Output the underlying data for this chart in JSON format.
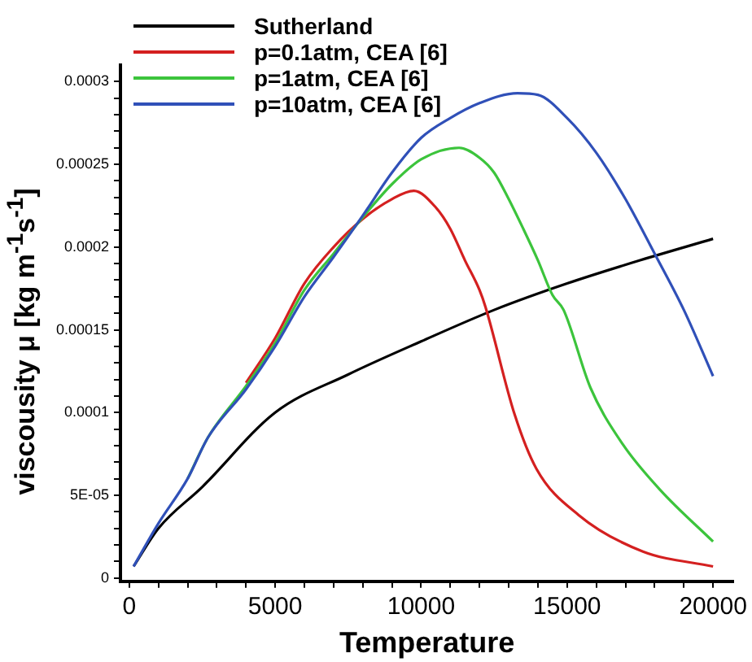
{
  "chart_data": {
    "type": "line",
    "xlabel": "Temperature",
    "ylabel": "viscousity μ [kg m$^{-1}$s$^{-1}$]",
    "legend": "top left",
    "grid": false,
    "marker": "none",
    "line_style": "solid",
    "xlim": [
      -300,
      20700
    ],
    "ylim": [
      -2e-06,
      0.00031
    ],
    "xticks": [
      0,
      {
        "value": 1000,
        "label": null
      },
      {
        "value": 2000,
        "label": null
      },
      {
        "value": 3000,
        "label": null
      },
      {
        "value": 4000,
        "label": null
      },
      5000,
      {
        "value": 6000,
        "label": null
      },
      {
        "value": 7000,
        "label": null
      },
      {
        "value": 8000,
        "label": null
      },
      {
        "value": 9000,
        "label": null
      },
      10000,
      {
        "value": 11000,
        "label": null
      },
      {
        "value": 12000,
        "label": null
      },
      {
        "value": 13000,
        "label": null
      },
      {
        "value": 14000,
        "label": null
      },
      15000,
      {
        "value": 16000,
        "label": null
      },
      {
        "value": 17000,
        "label": null
      },
      {
        "value": 18000,
        "label": null
      },
      {
        "value": 19000,
        "label": null
      },
      20000
    ],
    "yticks": [
      0,
      {
        "value": 1e-05,
        "label": null
      },
      {
        "value": 2e-05,
        "label": null
      },
      {
        "value": 3e-05,
        "label": null
      },
      {
        "value": 4e-05,
        "label": null
      },
      {
        "value": 5e-05,
        "label": "5E-05"
      },
      {
        "value": 6e-05,
        "label": null
      },
      {
        "value": 7e-05,
        "label": null
      },
      {
        "value": 8e-05,
        "label": null
      },
      {
        "value": 9e-05,
        "label": null
      },
      0.0001,
      {
        "value": 0.00011,
        "label": null
      },
      {
        "value": 0.00012,
        "label": null
      },
      {
        "value": 0.00013,
        "label": null
      },
      {
        "value": 0.00014,
        "label": null
      },
      0.00015,
      {
        "value": 0.00016,
        "label": null
      },
      {
        "value": 0.00017,
        "label": null
      },
      {
        "value": 0.00018,
        "label": null
      },
      {
        "value": 0.00019,
        "label": null
      },
      0.0002,
      {
        "value": 0.00021,
        "label": null
      },
      {
        "value": 0.00022,
        "label": null
      },
      {
        "value": 0.00023,
        "label": null
      },
      {
        "value": 0.00024,
        "label": null
      },
      0.00025,
      {
        "value": 0.00026,
        "label": null
      },
      {
        "value": 0.00027,
        "label": null
      },
      {
        "value": 0.00028,
        "label": null
      },
      {
        "value": 0.00029,
        "label": null
      },
      0.0003
    ],
    "series": [
      {
        "name": "Sutherland",
        "color": "#000000",
        "x": [
          150,
          1000,
          2500,
          5000,
          7500,
          10000,
          12500,
          15000,
          17500,
          20000
        ],
        "values": [
          7e-06,
          3e-05,
          5.5e-05,
          0.0001,
          0.000123,
          0.000143,
          0.000162,
          0.000178,
          0.000192,
          0.000205
        ]
      },
      {
        "name": "p=0.1atm, CEA [6]",
        "color": "#d42020",
        "x": [
          4000,
          5000,
          6000,
          7000,
          8000,
          9000,
          9750,
          10500,
          11000,
          11500,
          12000,
          12200,
          13200,
          13950,
          15400,
          17600,
          20000
        ],
        "values": [
          0.000118,
          0.000145,
          0.000178,
          0.0002,
          0.000217,
          0.000229,
          0.000234,
          0.000224,
          0.000211,
          0.000192,
          0.000174,
          0.000164,
          9.9e-05,
          6.6e-05,
          3.8e-05,
          1.6e-05,
          7e-06
        ]
      },
      {
        "name": "p=1atm, CEA [6]",
        "color": "#3cc43c",
        "x": [
          2000,
          2700,
          4000,
          5000,
          6000,
          7000,
          8000,
          9000,
          10000,
          11300,
          12000,
          12500,
          13000,
          13500,
          14000,
          14500,
          14880,
          15800,
          16900,
          18200,
          20000
        ],
        "values": [
          6e-05,
          8.5e-05,
          0.000116,
          0.000142,
          0.000174,
          0.000196,
          0.000218,
          0.000238,
          0.000253,
          0.00026,
          0.000254,
          0.000245,
          0.000229,
          0.000211,
          0.000192,
          0.000171,
          0.000162,
          0.000115,
          8.1e-05,
          5.3e-05,
          2.2e-05
        ]
      },
      {
        "name": "p=10atm, CEA [6]",
        "color": "#3050b8",
        "x": [
          150,
          1000,
          2000,
          2700,
          4000,
          5000,
          6000,
          7000,
          8000,
          9000,
          10000,
          11000,
          12000,
          13300,
          14000,
          15000,
          16000,
          17000,
          18000,
          19000,
          20000
        ],
        "values": [
          7e-06,
          3.3e-05,
          6e-05,
          8.5e-05,
          0.000114,
          0.00014,
          0.00017,
          0.000194,
          0.000219,
          0.000245,
          0.000266,
          0.000278,
          0.000287,
          0.000293,
          0.000292,
          0.000278,
          0.000257,
          0.000229,
          0.000196,
          0.000162,
          0.000122
        ]
      }
    ]
  }
}
